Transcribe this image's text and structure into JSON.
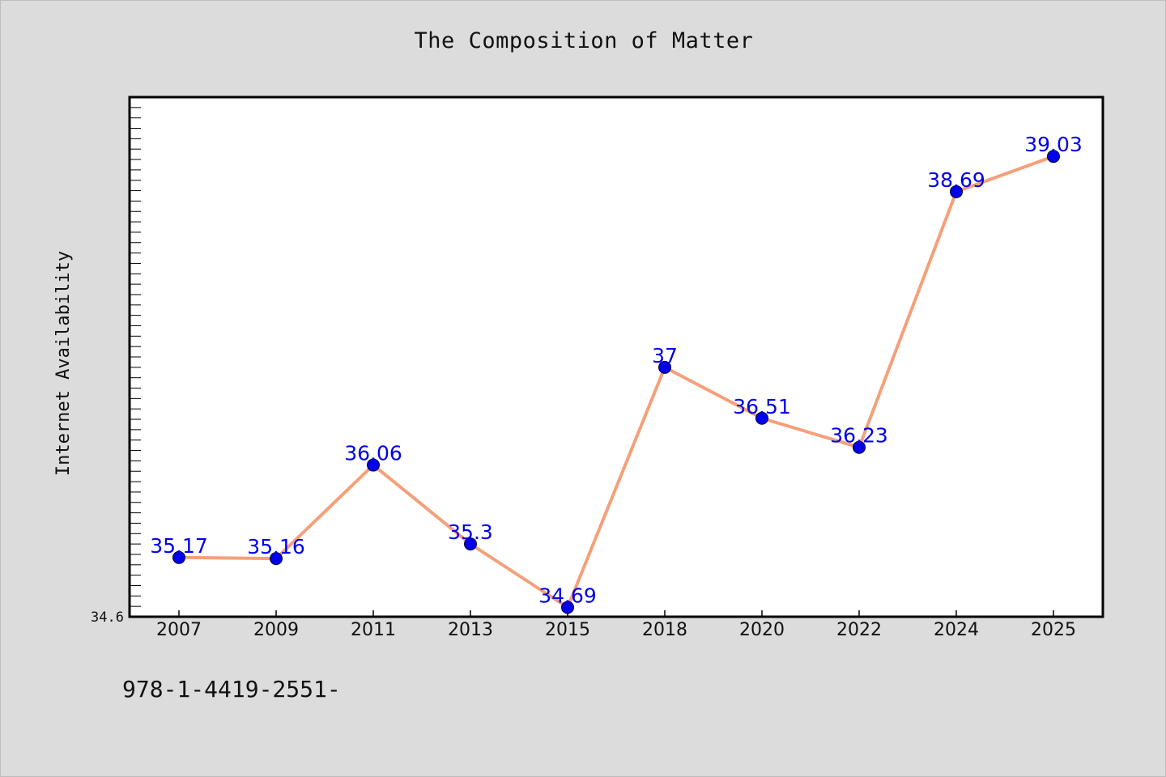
{
  "figure": {
    "title": "The Composition of Matter",
    "footer_text": "978-1-4419-2551-"
  },
  "colors": {
    "background": "#dcdcdc",
    "plot_background": "#ffffff",
    "line": "#f4a07a",
    "marker": "#0000ee",
    "data_label": "#0000ee",
    "axis": "#000000"
  },
  "chart_data": {
    "type": "line",
    "title": "The Composition of Matter",
    "xlabel": "",
    "ylabel": "Internet Availability",
    "categories": [
      "2007",
      "2009",
      "2011",
      "2013",
      "2015",
      "2018",
      "2020",
      "2022",
      "2024",
      "2025"
    ],
    "series": [
      {
        "values": [
          35.17,
          35.16,
          36.06,
          35.3,
          34.69,
          37,
          36.51,
          36.23,
          38.69,
          39.03
        ],
        "data_labels": [
          "35.17",
          "35.16",
          "36.06",
          "35.3",
          "34.69",
          "37",
          "36.51",
          "36.23",
          "38.69",
          "39.03"
        ]
      }
    ],
    "ylim": [
      34.6,
      39.6
    ],
    "y_tick_label": "34.6",
    "grid": false,
    "legend": false
  }
}
